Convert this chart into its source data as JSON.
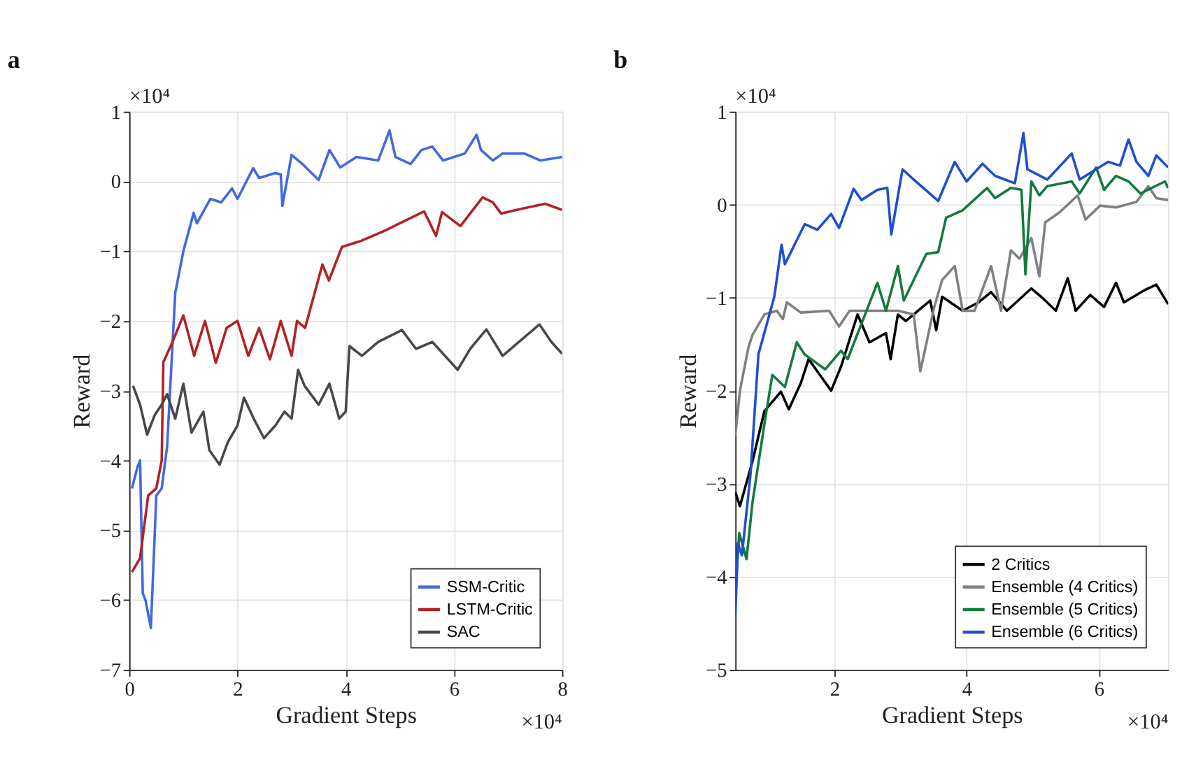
{
  "chart_data": [
    {
      "type": "line",
      "title": "a",
      "xlabel": "Gradient Steps",
      "ylabel": "Reward",
      "xlim": [
        0,
        8
      ],
      "xticks": [
        0,
        2,
        4,
        6,
        8
      ],
      "ylim": [
        -7,
        1
      ],
      "yticks": [
        -7,
        -6,
        -5,
        -4,
        -3,
        -2,
        -1,
        0,
        1
      ],
      "grid": true,
      "legend": "bottom right",
      "line_style": "solid",
      "annotations": [
        "×10⁴",
        "×10⁴"
      ],
      "series": [
        {
          "name": "SSM-Critic",
          "color": "#4169e1",
          "x": [
            0.05,
            0.15,
            0.2,
            0.25,
            0.3,
            0.4,
            0.5,
            0.6,
            0.7,
            0.85,
            1.0,
            1.19,
            1.25,
            1.5,
            1.7,
            1.9,
            2.0,
            2.29,
            2.4,
            2.7,
            2.8,
            2.83,
            3.0,
            3.2,
            3.5,
            3.7,
            3.9,
            4.2,
            4.6,
            4.81,
            4.92,
            5.2,
            5.4,
            5.6,
            5.8,
            6.2,
            6.42,
            6.5,
            6.72,
            6.9,
            7.3,
            7.6,
            8.0
          ],
          "values": [
            -4.4,
            -4.1,
            -4.0,
            -5.9,
            -6.0,
            -6.4,
            -4.5,
            -4.4,
            -3.8,
            -1.6,
            -1.0,
            -0.45,
            -0.6,
            -0.25,
            -0.3,
            -0.1,
            -0.25,
            0.19,
            0.05,
            0.12,
            0.1,
            -0.35,
            0.38,
            0.25,
            0.02,
            0.45,
            0.2,
            0.35,
            0.3,
            0.73,
            0.35,
            0.25,
            0.45,
            0.5,
            0.3,
            0.4,
            0.67,
            0.45,
            0.3,
            0.4,
            0.4,
            0.3,
            0.35
          ]
        },
        {
          "name": "LSTM-Critic",
          "color": "#b22222",
          "x": [
            0.05,
            0.2,
            0.35,
            0.5,
            0.6,
            0.63,
            0.8,
            1.0,
            1.2,
            1.4,
            1.6,
            1.8,
            2.0,
            2.2,
            2.4,
            2.6,
            2.8,
            3.0,
            3.1,
            3.25,
            3.39,
            3.57,
            3.69,
            3.93,
            4.29,
            4.74,
            5.0,
            5.45,
            5.67,
            5.78,
            6.12,
            6.53,
            6.72,
            6.87,
            7.2,
            7.69,
            8.0
          ],
          "values": [
            -5.6,
            -5.4,
            -4.5,
            -4.4,
            -4.0,
            -2.59,
            -2.3,
            -1.92,
            -2.5,
            -2.0,
            -2.6,
            -2.1,
            -2.0,
            -2.5,
            -2.1,
            -2.55,
            -2.0,
            -2.5,
            -2.0,
            -2.1,
            -1.7,
            -1.19,
            -1.42,
            -0.94,
            -0.85,
            -0.7,
            -0.6,
            -0.43,
            -0.78,
            -0.44,
            -0.64,
            -0.23,
            -0.3,
            -0.46,
            -0.4,
            -0.32,
            -0.41
          ]
        },
        {
          "name": "SAC",
          "color": "#484848",
          "x": [
            0.07,
            0.2,
            0.33,
            0.47,
            0.6,
            0.7,
            0.85,
            1.0,
            1.15,
            1.37,
            1.48,
            1.67,
            1.82,
            2.0,
            2.12,
            2.3,
            2.49,
            2.7,
            2.87,
            3.0,
            3.12,
            3.24,
            3.5,
            3.7,
            3.88,
            4.0,
            4.07,
            4.3,
            4.6,
            5.04,
            5.3,
            5.6,
            6.07,
            6.3,
            6.6,
            6.9,
            7.2,
            7.58,
            7.8,
            8.0
          ],
          "values": [
            -2.93,
            -3.2,
            -3.63,
            -3.35,
            -3.2,
            -3.05,
            -3.4,
            -2.9,
            -3.6,
            -3.3,
            -3.85,
            -4.06,
            -3.74,
            -3.5,
            -3.1,
            -3.4,
            -3.68,
            -3.5,
            -3.3,
            -3.4,
            -2.7,
            -2.93,
            -3.2,
            -2.9,
            -3.4,
            -3.3,
            -2.36,
            -2.5,
            -2.3,
            -2.13,
            -2.4,
            -2.3,
            -2.7,
            -2.4,
            -2.12,
            -2.5,
            -2.3,
            -2.05,
            -2.3,
            -2.47
          ]
        }
      ]
    },
    {
      "type": "line",
      "title": "b",
      "xlabel": "Gradient Steps",
      "ylabel": "Reward",
      "xlim": [
        0.5,
        7.05
      ],
      "xticks": [
        2,
        4,
        6
      ],
      "ylim": [
        -5,
        1
      ],
      "yticks": [
        -5,
        -4,
        -3,
        -2,
        -1,
        0,
        1
      ],
      "grid": true,
      "legend": "bottom right",
      "line_style": "solid",
      "annotations": [
        "×10⁴",
        "×10⁴"
      ],
      "series": [
        {
          "name": "2 Critics",
          "color": "#000000",
          "x": [
            0.5,
            0.57,
            0.76,
            0.94,
            1.19,
            1.31,
            1.49,
            1.61,
            1.74,
            1.95,
            2.1,
            2.35,
            2.53,
            2.78,
            2.85,
            2.96,
            3.08,
            3.45,
            3.54,
            3.63,
            3.94,
            4.18,
            4.37,
            4.61,
            4.98,
            5.16,
            5.35,
            5.53,
            5.65,
            5.87,
            6.08,
            6.26,
            6.38,
            6.69,
            6.87,
            7.05
          ],
          "values": [
            -3.09,
            -3.24,
            -2.76,
            -2.22,
            -2.01,
            -2.2,
            -1.92,
            -1.66,
            -1.79,
            -2.0,
            -1.74,
            -1.18,
            -1.48,
            -1.38,
            -1.66,
            -1.18,
            -1.25,
            -1.03,
            -1.35,
            -0.99,
            -1.14,
            -1.05,
            -0.94,
            -1.14,
            -0.9,
            -1.01,
            -1.14,
            -0.79,
            -1.14,
            -0.97,
            -1.1,
            -0.84,
            -1.05,
            -0.92,
            -0.86,
            -1.07
          ]
        },
        {
          "name": "Ensemble (4 Critics)",
          "color": "#808080",
          "x": [
            0.5,
            0.57,
            0.7,
            0.76,
            0.94,
            1.13,
            1.22,
            1.28,
            1.49,
            1.92,
            2.07,
            2.23,
            2.47,
            2.72,
            2.96,
            3.2,
            3.3,
            3.51,
            3.63,
            3.82,
            3.94,
            4.12,
            4.37,
            4.52,
            4.67,
            4.8,
            4.98,
            5.1,
            5.19,
            5.41,
            5.68,
            5.8,
            6.02,
            6.26,
            6.57,
            6.75,
            6.87,
            7.05
          ],
          "values": [
            -2.48,
            -2.0,
            -1.53,
            -1.4,
            -1.18,
            -1.14,
            -1.23,
            -1.05,
            -1.16,
            -1.14,
            -1.31,
            -1.14,
            -1.14,
            -1.14,
            -1.14,
            -1.18,
            -1.79,
            -1.1,
            -0.81,
            -0.66,
            -1.14,
            -1.14,
            -0.66,
            -1.14,
            -0.49,
            -0.58,
            -0.36,
            -0.77,
            -0.19,
            -0.08,
            0.1,
            -0.16,
            -0.01,
            -0.03,
            0.03,
            0.2,
            0.07,
            0.05
          ]
        },
        {
          "name": "Ensemble (5 Critics)",
          "color": "#137a3c",
          "x": [
            0.5,
            0.56,
            0.67,
            0.76,
            0.94,
            1.06,
            1.25,
            1.43,
            1.55,
            1.86,
            2.1,
            2.2,
            2.65,
            2.78,
            2.96,
            3.05,
            3.39,
            3.57,
            3.69,
            3.94,
            4.31,
            4.43,
            4.67,
            4.83,
            4.89,
            4.98,
            5.1,
            5.22,
            5.59,
            5.71,
            5.96,
            6.08,
            6.26,
            6.45,
            6.63,
            7.0,
            7.05
          ],
          "values": [
            -4.16,
            -3.53,
            -3.81,
            -3.2,
            -2.36,
            -1.83,
            -1.96,
            -1.48,
            -1.61,
            -1.77,
            -1.57,
            -1.66,
            -0.84,
            -1.14,
            -0.66,
            -1.03,
            -0.53,
            -0.51,
            -0.14,
            -0.06,
            0.18,
            0.07,
            0.18,
            0.16,
            -0.75,
            0.25,
            0.1,
            0.2,
            0.25,
            0.12,
            0.4,
            0.16,
            0.31,
            0.25,
            0.12,
            0.25,
            0.18
          ]
        },
        {
          "name": "Ensemble (6 Critics)",
          "color": "#1f4fd1",
          "x": [
            0.5,
            0.54,
            0.6,
            0.73,
            0.85,
            1.09,
            1.2,
            1.25,
            1.55,
            1.74,
            1.95,
            2.07,
            2.29,
            2.41,
            2.65,
            2.8,
            2.86,
            3.03,
            3.2,
            3.57,
            3.82,
            4.0,
            4.24,
            4.43,
            4.73,
            4.86,
            4.92,
            5.22,
            5.59,
            5.71,
            6.14,
            6.32,
            6.45,
            6.57,
            6.75,
            6.87,
            7.05
          ],
          "values": [
            -4.43,
            -3.64,
            -3.77,
            -2.9,
            -1.61,
            -0.99,
            -0.43,
            -0.64,
            -0.21,
            -0.27,
            -0.1,
            -0.25,
            0.17,
            0.05,
            0.16,
            0.18,
            -0.32,
            0.38,
            0.27,
            0.04,
            0.46,
            0.25,
            0.44,
            0.31,
            0.23,
            0.77,
            0.38,
            0.27,
            0.55,
            0.27,
            0.46,
            0.42,
            0.7,
            0.46,
            0.31,
            0.53,
            0.4
          ]
        }
      ]
    }
  ]
}
